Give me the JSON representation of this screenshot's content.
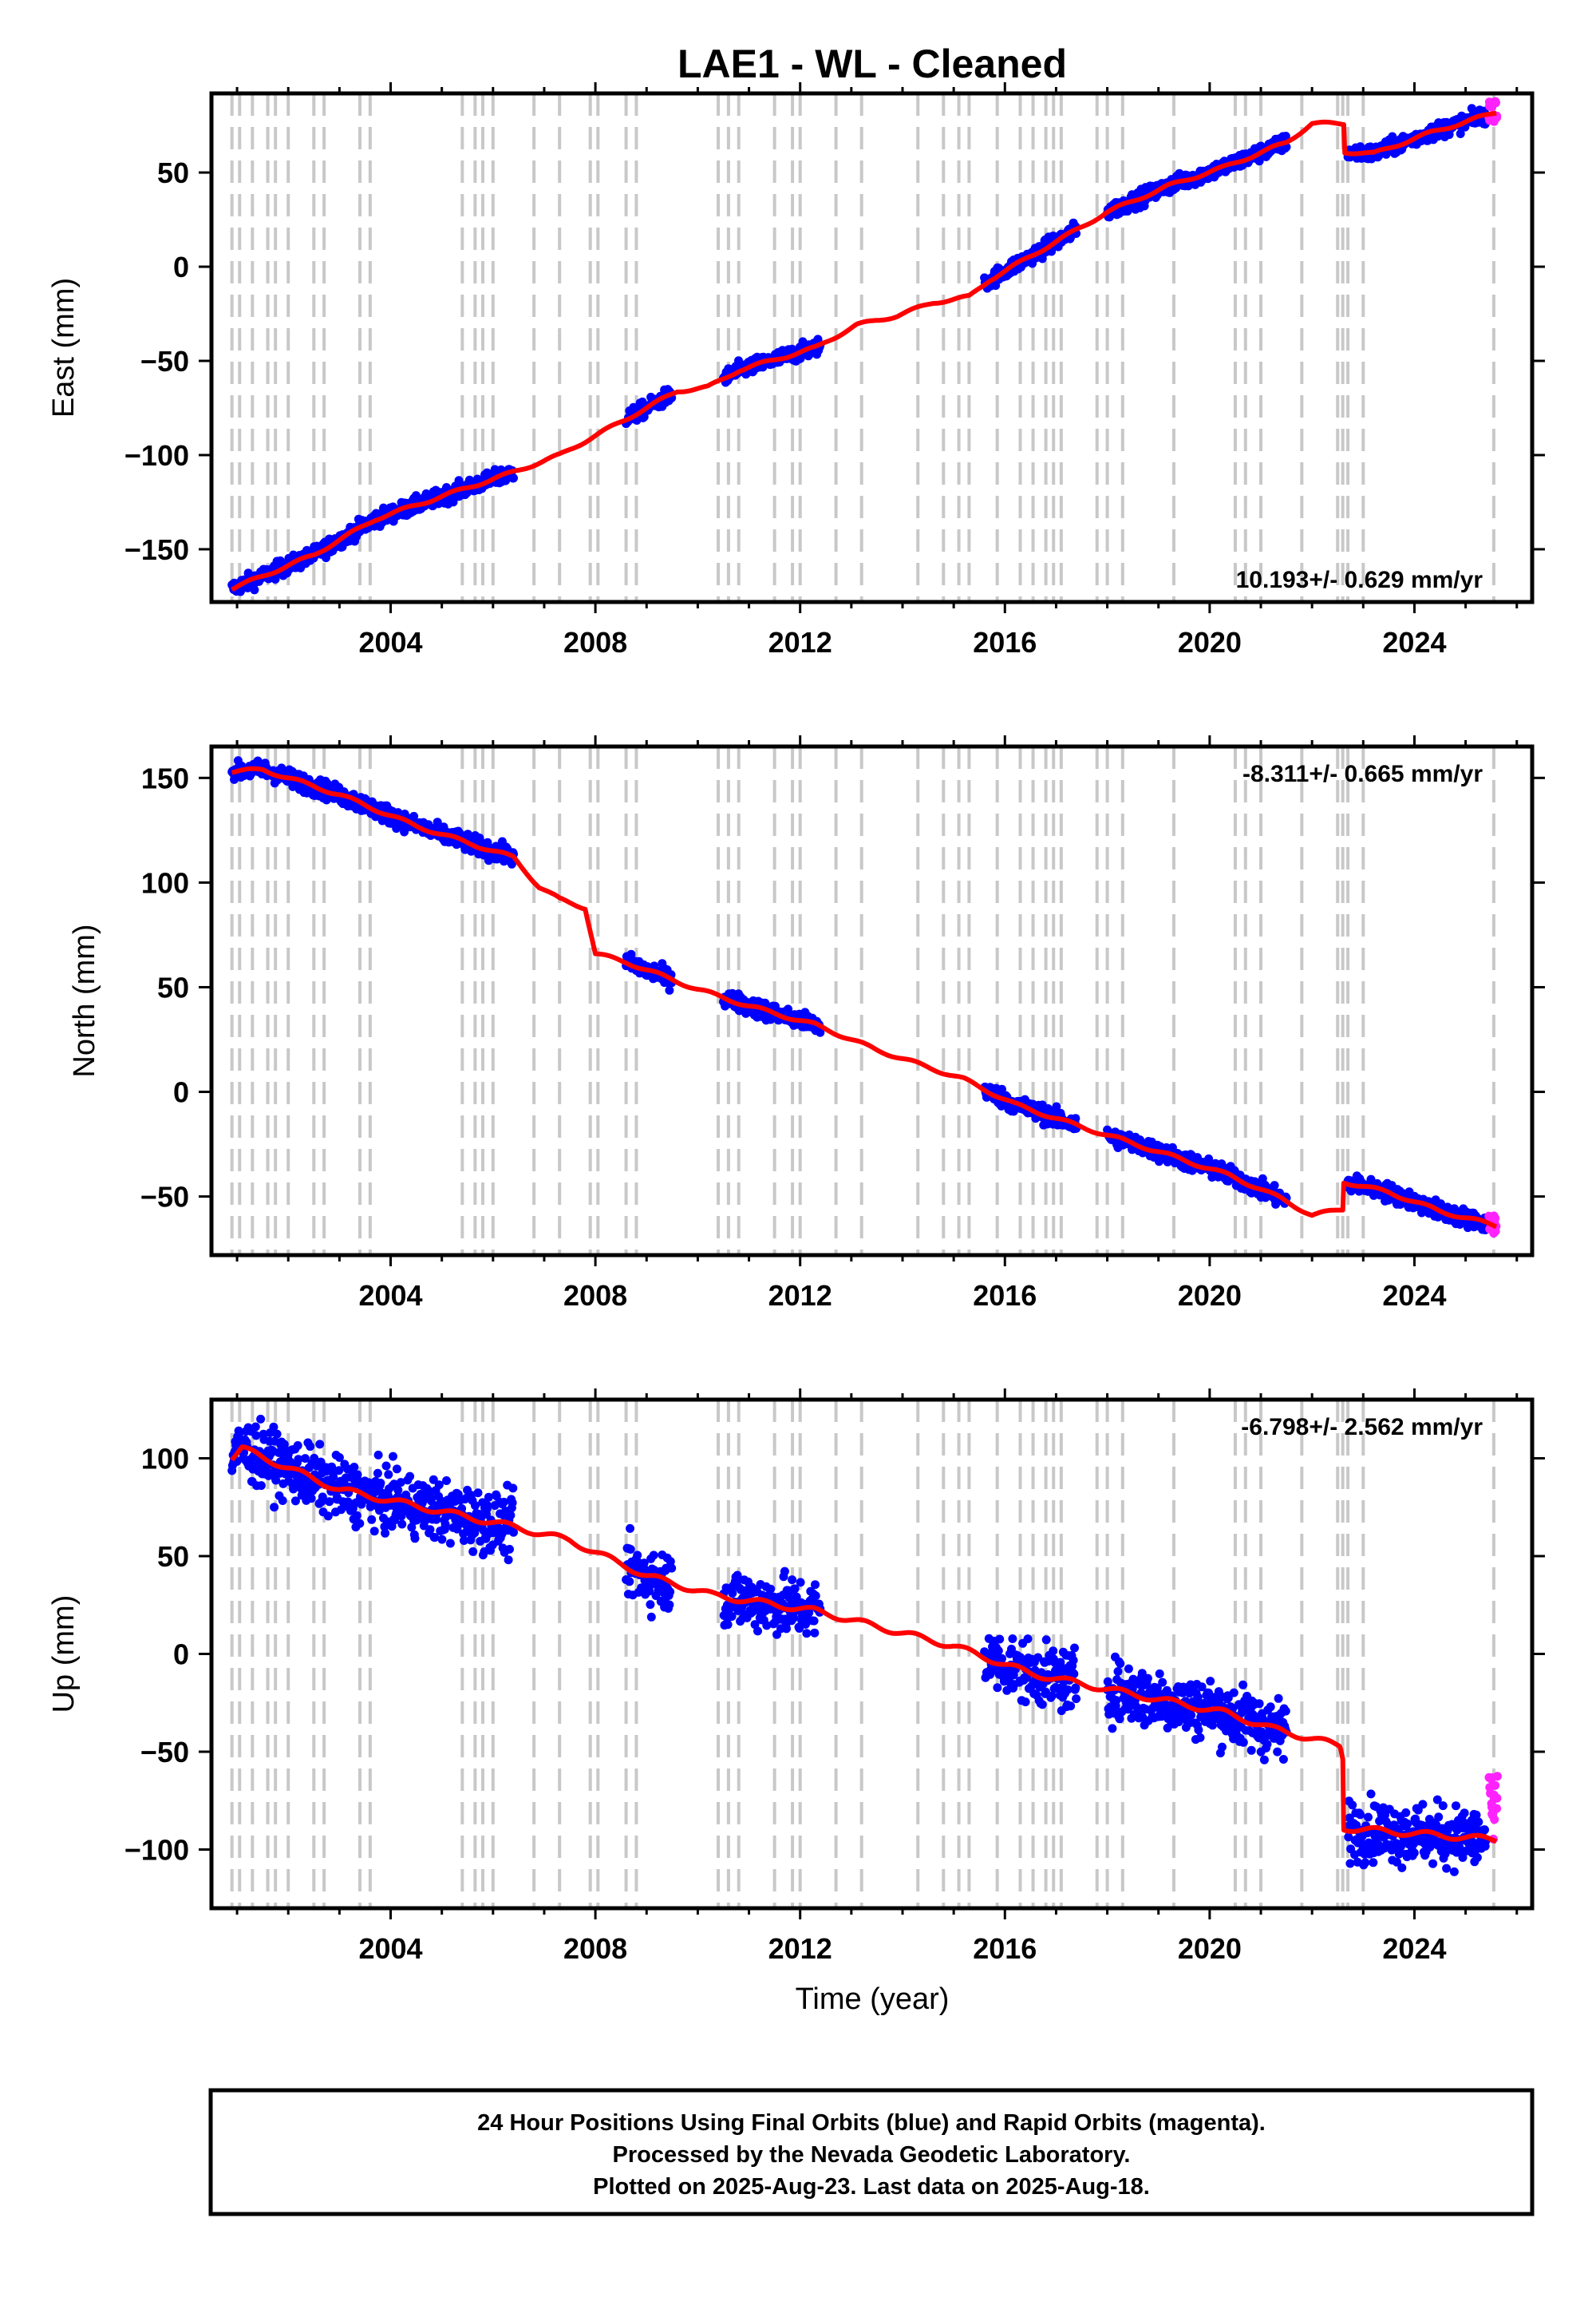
{
  "figure": {
    "title": "LAE1  - WL - Cleaned",
    "xlabel": "Time (year)",
    "colors": {
      "final": "#0000ff",
      "rapid": "#ff22ff",
      "model": "#ff0000",
      "steps": "#c8c8c8"
    },
    "footer": [
      "24 Hour Positions Using Final Orbits (blue) and Rapid Orbits (magenta).",
      "Processed by the Nevada Geodetic Laboratory.",
      "Plotted on 2025-Aug-23. Last data on 2025-Aug-18."
    ]
  },
  "chart_data": [
    {
      "type": "scatter",
      "title": "LAE1  - WL - Cleaned",
      "component": "east",
      "ylabel": "East (mm)",
      "xlabel": "",
      "xlim": [
        2000.5,
        2026.3
      ],
      "ylim": [
        -178,
        92
      ],
      "xticks": [
        2004,
        2008,
        2012,
        2016,
        2020,
        2024
      ],
      "yticks": [
        -150,
        -100,
        -50,
        0,
        50
      ],
      "rate_label": "10.193+/- 0.629 mm/yr",
      "rate_position": "bottom-right",
      "grid": false,
      "model": {
        "x": [
          2000.9,
          2002.5,
          2003.7,
          2005.1,
          2006.3,
          2007.3,
          2009.0,
          2009.6,
          2010.2,
          2010.8,
          2012.3,
          2013.1,
          2013.9,
          2014.6,
          2015.3,
          2015.7,
          2017.3,
          2018.0,
          2019.2,
          2020.3,
          2021.5,
          2022.0,
          2022.62,
          2022.63,
          2023.2,
          2024.3,
          2025.6
        ],
        "y": [
          -171,
          -153,
          -134,
          -121,
          -110,
          -100,
          -75,
          -66,
          -64,
          -55,
          -43,
          -31,
          -26,
          -19,
          -16,
          -7,
          18,
          29,
          43,
          53,
          66,
          76,
          76,
          61,
          60,
          71,
          82
        ]
      },
      "final": {
        "segments": [
          [
            2000.9,
            2006.4
          ],
          [
            2008.6,
            2009.5
          ],
          [
            2010.5,
            2012.4
          ],
          [
            2015.6,
            2017.4
          ],
          [
            2018.0,
            2021.5
          ],
          [
            2022.7,
            2025.4
          ]
        ],
        "scatter_mm": 3
      },
      "rapid": {
        "x_range": [
          2025.45,
          2025.62
        ],
        "y_range": [
          77,
          88
        ]
      }
    },
    {
      "type": "scatter",
      "component": "north",
      "ylabel": "North (mm)",
      "xlabel": "",
      "xlim": [
        2000.5,
        2026.3
      ],
      "ylim": [
        -78,
        165
      ],
      "xticks": [
        2004,
        2008,
        2012,
        2016,
        2020,
        2024
      ],
      "yticks": [
        -50,
        0,
        50,
        100,
        150
      ],
      "rate_label": "-8.311+/- 0.665 mm/yr",
      "rate_position": "top-right",
      "grid": false,
      "model": {
        "x": [
          2000.9,
          2001.5,
          2003.0,
          2004.5,
          2006.4,
          2006.9,
          2007.3,
          2007.8,
          2008.0,
          2008.6,
          2010.0,
          2011.0,
          2012.3,
          2013.5,
          2015.2,
          2016.2,
          2017.4,
          2018.3,
          2019.3,
          2020.4,
          2021.4,
          2022.0,
          2022.6,
          2022.62,
          2023.5,
          2024.5,
          2025.6
        ],
        "y": [
          153,
          154,
          142,
          127,
          112,
          98,
          92,
          88,
          66,
          62,
          49,
          41,
          32,
          20,
          6,
          -6,
          -16,
          -23,
          -31,
          -40,
          -51,
          -59,
          -56,
          -43,
          -48,
          -57,
          -64
        ]
      },
      "final": {
        "segments": [
          [
            2000.9,
            2006.4
          ],
          [
            2008.6,
            2009.5
          ],
          [
            2010.5,
            2012.4
          ],
          [
            2015.6,
            2017.4
          ],
          [
            2018.0,
            2021.5
          ],
          [
            2022.7,
            2025.4
          ]
        ],
        "scatter_mm": 3
      },
      "rapid": {
        "x_range": [
          2025.45,
          2025.62
        ],
        "y_range": [
          -68,
          -58
        ]
      }
    },
    {
      "type": "scatter",
      "component": "up",
      "ylabel": "Up (mm)",
      "xlabel": "Time (year)",
      "xlim": [
        2000.5,
        2026.3
      ],
      "ylim": [
        -130,
        130
      ],
      "xticks": [
        2004,
        2008,
        2012,
        2016,
        2020,
        2024
      ],
      "yticks": [
        -100,
        -50,
        0,
        50,
        100
      ],
      "rate_label": "-6.798+/- 2.562 mm/yr",
      "rate_position": "top-right",
      "grid": false,
      "model": {
        "x": [
          2000.9,
          2001.1,
          2003.0,
          2006.4,
          2007.5,
          2009.0,
          2010.3,
          2012.3,
          2015.0,
          2016.5,
          2018.0,
          2020.3,
          2021.2,
          2022.55,
          2022.6,
          2022.62,
          2025.6
        ],
        "y": [
          100,
          105,
          84,
          65,
          58,
          40,
          30,
          22,
          4,
          -10,
          -18,
          -30,
          -38,
          -47,
          -53,
          -89,
          -95
        ]
      },
      "final": {
        "segments": [
          [
            2000.9,
            2006.4
          ],
          [
            2008.6,
            2009.5
          ],
          [
            2010.5,
            2012.4
          ],
          [
            2015.6,
            2017.4
          ],
          [
            2018.0,
            2021.5
          ],
          [
            2022.7,
            2025.4
          ]
        ],
        "scatter_mm": 11
      },
      "rapid": {
        "x_range": [
          2025.45,
          2025.62
        ],
        "y_range": [
          -97,
          -62
        ]
      }
    }
  ],
  "steps_years": [
    2000.9,
    2001.05,
    2001.3,
    2001.6,
    2001.75,
    2002.0,
    2002.5,
    2002.7,
    2003.4,
    2003.6,
    2005.4,
    2005.65,
    2005.8,
    2006.0,
    2006.8,
    2007.3,
    2007.9,
    2008.05,
    2008.6,
    2008.8,
    2010.4,
    2010.6,
    2010.8,
    2011.5,
    2011.85,
    2012.0,
    2012.7,
    2013.2,
    2014.3,
    2014.8,
    2015.1,
    2015.3,
    2015.85,
    2016.3,
    2016.55,
    2016.8,
    2016.95,
    2017.1,
    2017.8,
    2018.0,
    2018.3,
    2019.3,
    2020.5,
    2020.7,
    2021.0,
    2021.8,
    2022.5,
    2022.6,
    2022.7,
    2023.0,
    2025.55
  ]
}
